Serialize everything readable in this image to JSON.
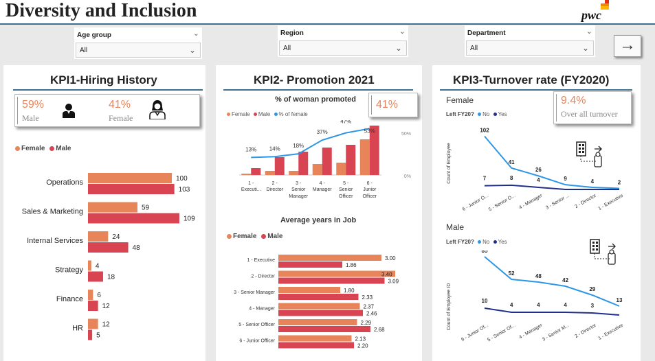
{
  "header": {
    "title": "Diversity and Inclusion",
    "logo_text": "pwc",
    "logo_colors": [
      "#d93954",
      "#e0301e",
      "#eb8c00",
      "#ffb600"
    ]
  },
  "filters": [
    {
      "label": "Age group",
      "value": "All"
    },
    {
      "label": "Region",
      "value": "All"
    },
    {
      "label": "Department",
      "value": "All"
    }
  ],
  "next_button": {
    "icon": "arrow-right-icon",
    "glyph": "→"
  },
  "colors": {
    "female": "#e8845a",
    "male": "#d94452",
    "pct": "#2e96e6",
    "turnover_no": "#2e96e6",
    "turnover_yes": "#1f2f8a",
    "accent_line": "#3e6f8e"
  },
  "kpi1": {
    "title": "KPI1-Hiring History",
    "male_pct": "59%",
    "male_label": "Male",
    "female_pct": "41%",
    "female_label": "Female",
    "legend_female": "Female",
    "legend_male": "Male"
  },
  "kpi2": {
    "title": "KPI2- Promotion 2021",
    "chart_title": "% of woman promoted",
    "kpi_value": "41%",
    "legend": [
      "Female",
      "Male",
      "% of female"
    ],
    "avg_title": "Average years in Job",
    "avg_legend_female": "Female",
    "avg_legend_male": "Male"
  },
  "kpi3": {
    "title": "KPI3-Turnover rate  (FY2020)",
    "female_section": "Female",
    "male_section": "Male",
    "legend_title": "Left FY20?",
    "legend_no": "No",
    "legend_yes": "Yes",
    "kpi_value": "9.4%",
    "kpi_label": "Over all turnover",
    "female_yaxis": "Count of Employee",
    "male_yaxis": "Count of Employee ID",
    "icon": "office-exit-icon"
  },
  "chart_data": [
    {
      "type": "bar",
      "orientation": "horizontal",
      "categories": [
        "Operations",
        "Sales & Marketing",
        "Internal Services",
        "Strategy",
        "Finance",
        "HR"
      ],
      "series": [
        {
          "name": "Female",
          "values": [
            100,
            59,
            24,
            4,
            6,
            12
          ]
        },
        {
          "name": "Male",
          "values": [
            103,
            109,
            48,
            18,
            12,
            5
          ]
        }
      ]
    },
    {
      "type": "bar",
      "title": "% of woman promoted",
      "categories": [
        "1 - Executi...",
        "2 - Director",
        "3 - Senior Manager",
        "4 - Manager",
        "5 - Senior Officer",
        "6 - Junior Officer"
      ],
      "series": [
        {
          "name": "Female",
          "values": [
            1,
            3,
            3,
            8,
            9,
            26
          ]
        },
        {
          "name": "Male",
          "values": [
            5,
            13,
            17,
            20,
            22,
            36
          ]
        },
        {
          "name": "% of female",
          "type": "line",
          "values": [
            13,
            14,
            18,
            37,
            47,
            53
          ],
          "labels": [
            "13%",
            "14%",
            "18%",
            "37%",
            "47%",
            "53%"
          ]
        }
      ],
      "y2_ticks": [
        "50%",
        "0%"
      ],
      "y2lim": [
        0,
        50
      ]
    },
    {
      "type": "bar",
      "orientation": "horizontal",
      "title": "Average years in Job",
      "categories": [
        "1 - Executive",
        "2 - Director",
        "3 - Senior Manager",
        "4 - Manager",
        "5 - Senior Officer",
        "6 - Junior Officer"
      ],
      "series": [
        {
          "name": "Female",
          "values": [
            3.0,
            3.4,
            1.8,
            2.37,
            2.29,
            2.13
          ],
          "labels": [
            "3.00",
            "3.40",
            "1.80",
            "2.37",
            "2.29",
            "2.13"
          ]
        },
        {
          "name": "Male",
          "values": [
            1.86,
            3.09,
            2.33,
            2.46,
            2.68,
            2.2
          ],
          "labels": [
            "1.86",
            "3.09",
            "2.33",
            "2.46",
            "2.68",
            "2.20"
          ]
        }
      ]
    },
    {
      "type": "line",
      "title": "Female",
      "ylabel": "Count of Employee",
      "categories": [
        "6 - Junior O...",
        "5 - Senior O...",
        "4 - Manager",
        "3 - Senior ...",
        "2 - Director",
        "1 - Executive"
      ],
      "series": [
        {
          "name": "No",
          "values": [
            102,
            41,
            26,
            9,
            4,
            2
          ]
        },
        {
          "name": "Yes",
          "values": [
            7,
            8,
            4,
            0,
            0,
            0
          ],
          "labels": [
            "7",
            "8",
            "4",
            "",
            "",
            ""
          ]
        }
      ]
    },
    {
      "type": "line",
      "title": "Male",
      "ylabel": "Count of Employee ID",
      "categories": [
        "6 - Junior Of...",
        "5 - Senior Of...",
        "4 - Manager",
        "3 - Senior M...",
        "2 - Director",
        "1 - Executive"
      ],
      "series": [
        {
          "name": "No",
          "values": [
            85,
            52,
            48,
            42,
            29,
            13
          ]
        },
        {
          "name": "Yes",
          "values": [
            10,
            4,
            4,
            4,
            3,
            0
          ],
          "labels": [
            "10",
            "4",
            "4",
            "4",
            "3",
            ""
          ]
        }
      ]
    }
  ]
}
